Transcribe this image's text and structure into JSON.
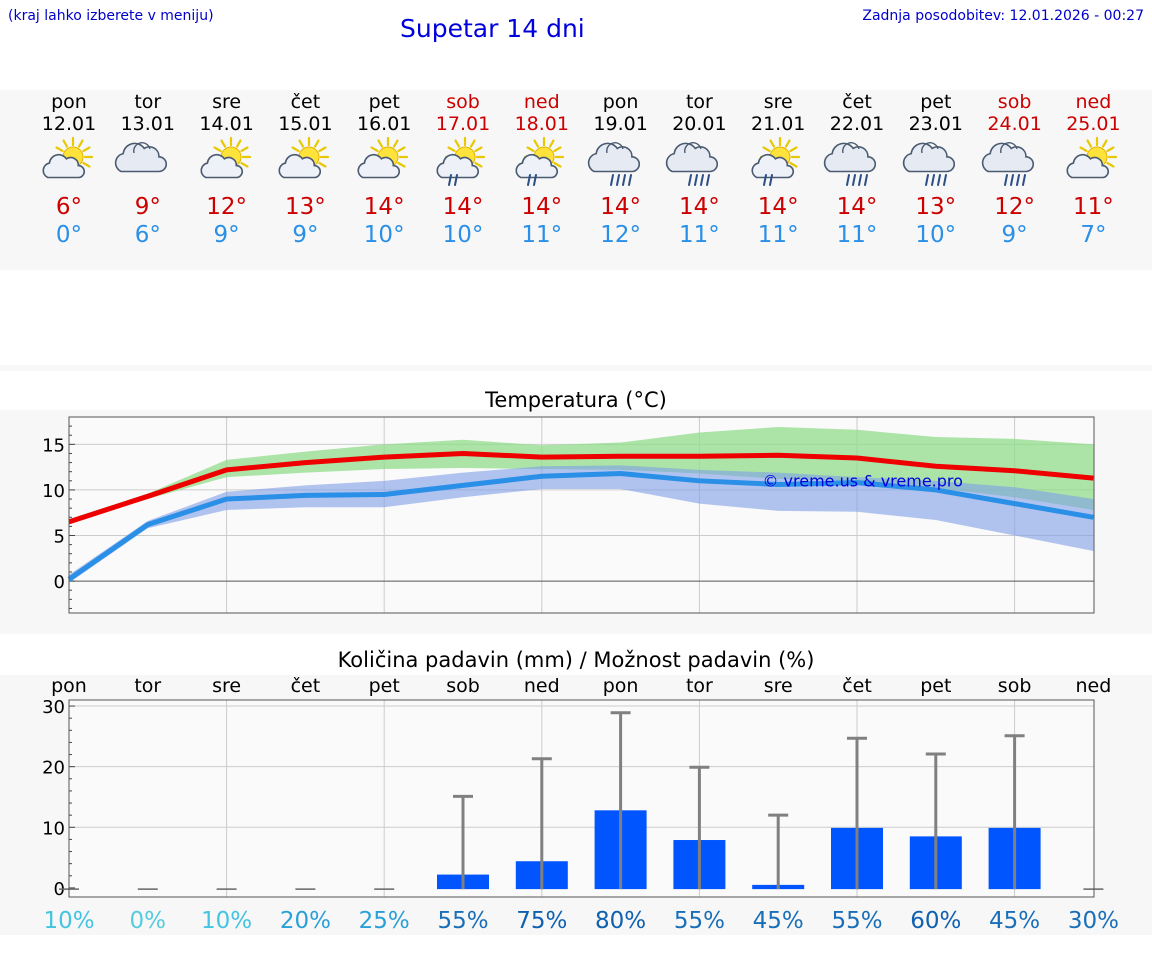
{
  "header": {
    "left_note": "(kraj lahko izberete v meniju)",
    "title": "Supetar 14 dni",
    "updated": "Zadnja posodobitev: 12.01.2026 - 00:27"
  },
  "colors": {
    "weekday": "#000000",
    "weekend": "#cc0000",
    "tmax": "#cc0000",
    "tmin": "#2a8fe6",
    "max_line": "#ee0000",
    "min_line": "#2a8fe6",
    "max_band": "#90dc8a",
    "min_band": "#7e9ee8",
    "bar": "#0055ff",
    "whisker": "#808080"
  },
  "days": [
    {
      "name": "pon",
      "date": "12.01",
      "weekend": false,
      "icon": "sun-cloud-icon",
      "tmax": "6°",
      "tmin": "0°"
    },
    {
      "name": "tor",
      "date": "13.01",
      "weekend": false,
      "icon": "cloud-icon",
      "tmax": "9°",
      "tmin": "6°"
    },
    {
      "name": "sre",
      "date": "14.01",
      "weekend": false,
      "icon": "sun-cloud-icon",
      "tmax": "12°",
      "tmin": "9°"
    },
    {
      "name": "čet",
      "date": "15.01",
      "weekend": false,
      "icon": "sun-cloud-icon",
      "tmax": "13°",
      "tmin": "9°"
    },
    {
      "name": "pet",
      "date": "16.01",
      "weekend": false,
      "icon": "sun-cloud-icon",
      "tmax": "14°",
      "tmin": "10°"
    },
    {
      "name": "sob",
      "date": "17.01",
      "weekend": true,
      "icon": "sun-cloud-rain-icon",
      "tmax": "14°",
      "tmin": "10°"
    },
    {
      "name": "ned",
      "date": "18.01",
      "weekend": true,
      "icon": "sun-cloud-rain-icon",
      "tmax": "14°",
      "tmin": "11°"
    },
    {
      "name": "pon",
      "date": "19.01",
      "weekend": false,
      "icon": "cloud-rain-icon",
      "tmax": "14°",
      "tmin": "12°"
    },
    {
      "name": "tor",
      "date": "20.01",
      "weekend": false,
      "icon": "cloud-rain-icon",
      "tmax": "14°",
      "tmin": "11°"
    },
    {
      "name": "sre",
      "date": "21.01",
      "weekend": false,
      "icon": "sun-cloud-rain-icon",
      "tmax": "14°",
      "tmin": "11°"
    },
    {
      "name": "čet",
      "date": "22.01",
      "weekend": false,
      "icon": "cloud-rain-icon",
      "tmax": "14°",
      "tmin": "11°"
    },
    {
      "name": "pet",
      "date": "23.01",
      "weekend": false,
      "icon": "cloud-rain-icon",
      "tmax": "13°",
      "tmin": "10°"
    },
    {
      "name": "sob",
      "date": "24.01",
      "weekend": true,
      "icon": "cloud-rain-icon",
      "tmax": "12°",
      "tmin": "9°"
    },
    {
      "name": "ned",
      "date": "25.01",
      "weekend": true,
      "icon": "sun-cloud-icon",
      "tmax": "11°",
      "tmin": "7°"
    }
  ],
  "chart_data": [
    {
      "type": "line",
      "title": "Temperatura (°C)",
      "ylim": [
        -3.5,
        18
      ],
      "yticks": [
        0,
        5,
        10,
        15
      ],
      "watermark": "© vreme.us & vreme.pro",
      "x": [
        0,
        1,
        2,
        3,
        4,
        5,
        6,
        7,
        8,
        9,
        10,
        11,
        12,
        13
      ],
      "series": [
        {
          "name": "max",
          "values": [
            6.5,
            9.3,
            12.2,
            13.0,
            13.6,
            14.0,
            13.6,
            13.7,
            13.7,
            13.8,
            13.5,
            12.6,
            12.1,
            11.3
          ],
          "band_low": [
            6.3,
            9.0,
            11.4,
            11.9,
            12.3,
            12.4,
            12.3,
            12.2,
            11.8,
            11.2,
            11.0,
            10.2,
            9.2,
            7.8
          ],
          "band_high": [
            6.8,
            9.6,
            13.3,
            14.2,
            15.0,
            15.5,
            14.9,
            15.2,
            16.3,
            16.9,
            16.6,
            15.8,
            15.6,
            15.0
          ]
        },
        {
          "name": "min",
          "values": [
            0.2,
            6.2,
            9.0,
            9.4,
            9.5,
            10.5,
            11.5,
            11.8,
            11.0,
            10.6,
            10.8,
            10.0,
            8.5,
            7.0
          ],
          "band_low": [
            -0.2,
            5.8,
            7.8,
            8.1,
            8.1,
            9.2,
            10.1,
            10.1,
            8.5,
            7.7,
            7.6,
            6.7,
            5.0,
            3.3
          ],
          "band_high": [
            0.7,
            6.6,
            9.8,
            10.5,
            11.0,
            11.9,
            12.6,
            12.7,
            12.2,
            11.9,
            11.4,
            11.0,
            10.3,
            9.0
          ]
        }
      ]
    },
    {
      "type": "bar",
      "title": "Količina padavin (mm) / Možnost padavin (%)",
      "ylim": [
        -1.5,
        31
      ],
      "yticks": [
        0,
        10,
        20,
        30
      ],
      "categories": [
        "pon",
        "tor",
        "sre",
        "čet",
        "pet",
        "sob",
        "ned",
        "pon",
        "tor",
        "sre",
        "čet",
        "pet",
        "sob",
        "ned"
      ],
      "values": [
        0,
        0,
        0,
        0,
        0,
        2.2,
        4.4,
        12.8,
        7.9,
        0.5,
        9.9,
        8.5,
        9.9,
        0
      ],
      "whisker_high": [
        0,
        0,
        0,
        0,
        0,
        15.1,
        21.3,
        28.9,
        19.9,
        12.0,
        24.7,
        22.1,
        25.1,
        0
      ],
      "probability": [
        "10%",
        "0%",
        "10%",
        "20%",
        "25%",
        "55%",
        "75%",
        "80%",
        "55%",
        "45%",
        "55%",
        "60%",
        "45%",
        "30%"
      ],
      "probability_values": [
        10,
        0,
        10,
        20,
        25,
        55,
        75,
        80,
        55,
        45,
        55,
        60,
        45,
        30
      ]
    }
  ]
}
